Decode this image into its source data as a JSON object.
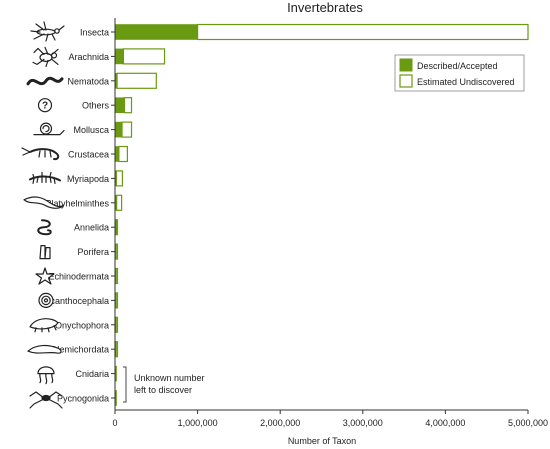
{
  "chart_data": {
    "type": "bar",
    "orientation": "horizontal",
    "title": "Invertebrates",
    "xlabel": "Number of Taxon",
    "ylabel": "",
    "xlim": [
      0,
      5000000
    ],
    "xticks": [
      0,
      1000000,
      2000000,
      3000000,
      4000000,
      5000000
    ],
    "xtick_labels": [
      "0",
      "1,000,000",
      "2,000,000",
      "3,000,000",
      "4,000,000",
      "5,000,000"
    ],
    "legend_position": "top-right",
    "stacked": true,
    "categories": [
      "Insecta",
      "Arachnida",
      "Nematoda",
      "Others",
      "Mollusca",
      "Crustacea",
      "Myriapoda",
      "Platyhelminthes",
      "Annelida",
      "Porifera",
      "Echinodermata",
      "Acanthocephala",
      "Onychophora",
      "Hemichordata",
      "Cnidaria",
      "Pycnogonida"
    ],
    "icons": [
      "insect-icon",
      "spider-icon",
      "worm-icon",
      "question-icon",
      "snail-icon",
      "shrimp-icon",
      "centipede-icon",
      "flatworm-icon",
      "annelid-icon",
      "sponge-icon",
      "starfish-icon",
      "spiral-worm-icon",
      "velvet-worm-icon",
      "acorn-worm-icon",
      "jellyfish-icon",
      "sea-spider-icon"
    ],
    "series": [
      {
        "name": "Described/Accepted",
        "color": "#6a9a12",
        "fill": "solid",
        "values": [
          1000000,
          102000,
          25000,
          115000,
          85000,
          47000,
          16000,
          20000,
          17000,
          8000,
          7000,
          1200,
          200,
          100,
          12000,
          1300
        ]
      },
      {
        "name": "Estimated Undiscovered",
        "color": "#6a9a12",
        "fill": "outline",
        "values": [
          4000000,
          498000,
          475000,
          85000,
          115000,
          103000,
          74000,
          60000,
          13000,
          22000,
          23000,
          28800,
          29800,
          29900,
          null,
          null
        ]
      }
    ],
    "annotations": [
      {
        "text": "Unknown number left to discover",
        "applies_to": [
          "Cnidaria",
          "Pycnogonida"
        ]
      }
    ]
  }
}
